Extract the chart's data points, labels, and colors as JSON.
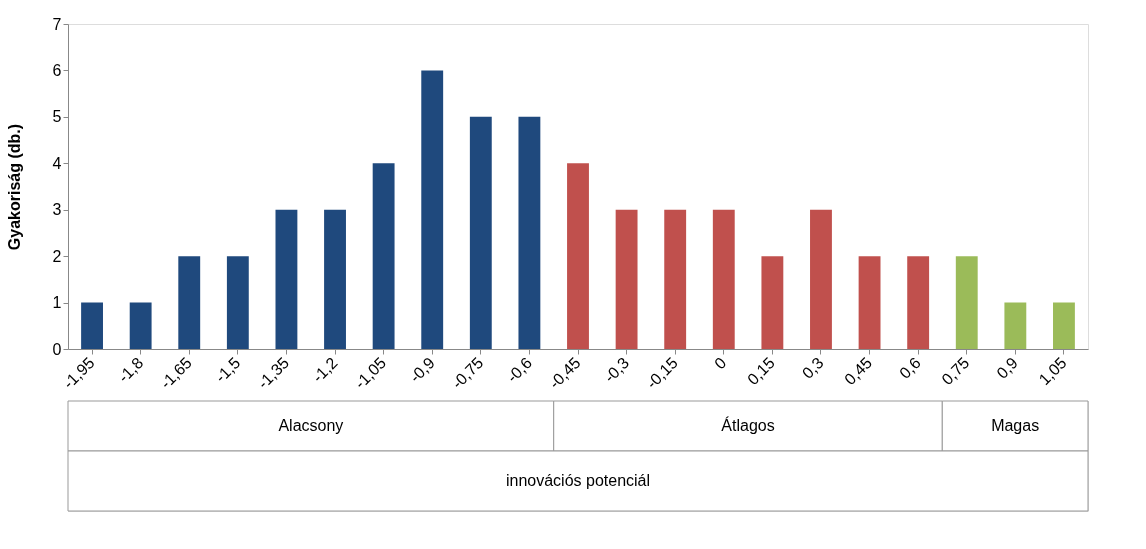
{
  "chart_data": {
    "type": "bar",
    "ylabel": "Gyakoriság (db.)",
    "annotations": [
      "Alacsony",
      "Átlagos",
      "Magas",
      "innovációs potenciál"
    ],
    "categories": [
      "-1,95",
      "-1,8",
      "-1,65",
      "-1,5",
      "-1,35",
      "-1,2",
      "-1,05",
      "-0,9",
      "-0,75",
      "-0,6",
      "-0,45",
      "-0,3",
      "-0,15",
      "0",
      "0,15",
      "0,3",
      "0,45",
      "0,6",
      "0,75",
      "0,9",
      "1,05"
    ],
    "series": [
      {
        "color": "#1f497d",
        "values": [
          1,
          1,
          2,
          2,
          3,
          3,
          4,
          6,
          5,
          5,
          null,
          null,
          null,
          null,
          null,
          null,
          null,
          null,
          null,
          null,
          null
        ]
      },
      {
        "color": "#c0504d",
        "values": [
          null,
          null,
          null,
          null,
          null,
          null,
          null,
          null,
          null,
          null,
          4,
          3,
          3,
          3,
          2,
          3,
          2,
          2,
          null,
          null,
          null
        ]
      },
      {
        "color": "#9bbb59",
        "values": [
          null,
          null,
          null,
          null,
          null,
          null,
          null,
          null,
          null,
          null,
          null,
          null,
          null,
          null,
          null,
          null,
          null,
          null,
          2,
          1,
          1
        ]
      }
    ],
    "ylim": [
      0,
      7
    ],
    "yticks": [
      0,
      1,
      2,
      3,
      4,
      5,
      6,
      7
    ]
  }
}
